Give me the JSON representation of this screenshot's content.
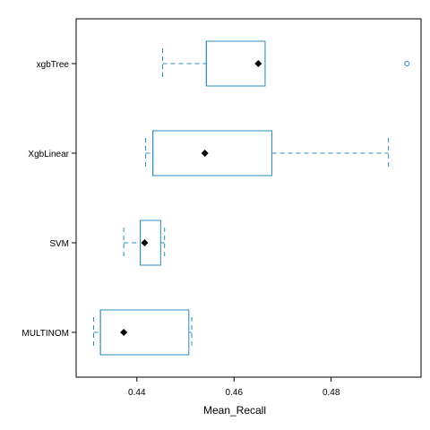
{
  "chart_data": {
    "type": "boxplot",
    "orientation": "horizontal",
    "xlabel": "Mean_Recall",
    "xlim": [
      0.4275,
      0.4985
    ],
    "xticks": [
      0.44,
      0.46,
      0.48
    ],
    "xtick_labels": [
      "0.44",
      "0.46",
      "0.48"
    ],
    "categories": [
      "MULTINOM",
      "SVM",
      "XgbLinear",
      "xgbTree"
    ],
    "boxes": [
      {
        "name": "MULTINOM",
        "whisker_low": 0.4311,
        "q1": 0.4325,
        "median": 0.4325,
        "q3": 0.4507,
        "whisker_high": 0.4513,
        "mean": 0.4373,
        "outliers": []
      },
      {
        "name": "SVM",
        "whisker_low": 0.4373,
        "q1": 0.4407,
        "median": 0.4407,
        "q3": 0.4449,
        "whisker_high": 0.4457,
        "mean": 0.4416,
        "outliers": []
      },
      {
        "name": "XgbLinear",
        "whisker_low": 0.4418,
        "q1": 0.4433,
        "median": 0.4433,
        "q3": 0.4678,
        "whisker_high": 0.4918,
        "mean": 0.454,
        "outliers": []
      },
      {
        "name": "xgbTree",
        "whisker_low": 0.4453,
        "q1": 0.4543,
        "median": 0.4543,
        "q3": 0.4664,
        "whisker_high": 0.4664,
        "mean": 0.465,
        "outliers": [
          0.4956
        ]
      }
    ],
    "colors": {
      "box": "#2b8cbe",
      "mean": "#000000",
      "frame": "#000000"
    }
  }
}
